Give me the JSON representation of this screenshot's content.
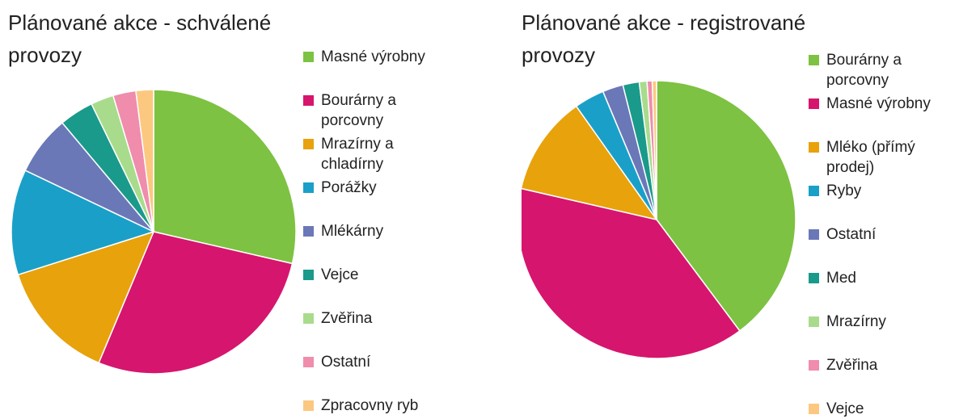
{
  "chart_data": [
    {
      "type": "pie",
      "title": "Plánované akce - schválené provozy",
      "categories": [
        "Masné výrobny",
        "Bourárny a porcovny",
        "Mrazírny a chladírny",
        "Porážky",
        "Mlékárny",
        "Vejce",
        "Zvěřina",
        "Ostatní",
        "Zpracovny ryb"
      ],
      "values": [
        28.6,
        27.7,
        13.8,
        12,
        6.8,
        3.9,
        2.6,
        2.6,
        2
      ],
      "colors": [
        "#7dc242",
        "#d6156e",
        "#e8a20c",
        "#1aa0c8",
        "#6a78b8",
        "#1a9a8a",
        "#a8dc8c",
        "#f08cac",
        "#fcc880"
      ],
      "legend": "right"
    },
    {
      "type": "pie",
      "title": "Plánované akce - registrované provozy",
      "categories": [
        "Bourárny a porcovny",
        "Masné výrobny",
        "Mléko (přímý prodej)",
        "Ryby",
        "Ostatní",
        "Med",
        "Mrazírny",
        "Zvěřina",
        "Vejce"
      ],
      "values": [
        39.8,
        38.8,
        11.6,
        3.5,
        2.4,
        1.9,
        0.9,
        0.6,
        0.5
      ],
      "colors": [
        "#7dc242",
        "#d6156e",
        "#e8a20c",
        "#1aa0c8",
        "#6a78b8",
        "#1a9a8a",
        "#a8dc8c",
        "#f08cac",
        "#fcc880"
      ],
      "legend": "right"
    }
  ]
}
